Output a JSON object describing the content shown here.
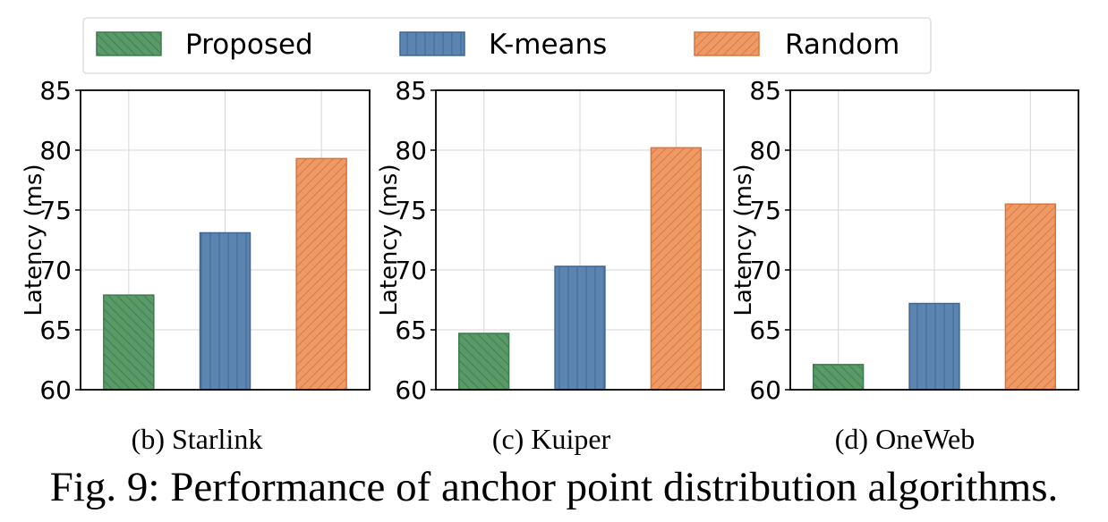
{
  "legend": [
    {
      "label": "Proposed",
      "color": "#5a9a68",
      "edge": "#3d7a4c",
      "hatch": "backslash"
    },
    {
      "label": "K-means",
      "color": "#5b84b1",
      "edge": "#3f6791",
      "hatch": "vertical"
    },
    {
      "label": "Random",
      "color": "#ee9a64",
      "edge": "#d9743e",
      "hatch": "slash"
    }
  ],
  "chart_data": [
    {
      "type": "bar",
      "subcaption": "(b) Starlink",
      "categories": [
        "Proposed",
        "K-means",
        "Random"
      ],
      "values": [
        67.9,
        73.1,
        79.3
      ],
      "ylabel": "Latency (ms)",
      "ylim": [
        60,
        85
      ],
      "yticks": [
        "60",
        "65",
        "70",
        "75",
        "80",
        "85"
      ],
      "grid": true
    },
    {
      "type": "bar",
      "subcaption": "(c) Kuiper",
      "categories": [
        "Proposed",
        "K-means",
        "Random"
      ],
      "values": [
        64.7,
        70.3,
        80.2
      ],
      "ylabel": "Latency (ms)",
      "ylim": [
        60,
        85
      ],
      "yticks": [
        "60",
        "65",
        "70",
        "75",
        "80",
        "85"
      ],
      "grid": true
    },
    {
      "type": "bar",
      "subcaption": "(d) OneWeb",
      "categories": [
        "Proposed",
        "K-means",
        "Random"
      ],
      "values": [
        62.1,
        67.2,
        75.5
      ],
      "ylabel": "Latency (ms)",
      "ylim": [
        60,
        85
      ],
      "yticks": [
        "60",
        "65",
        "70",
        "75",
        "80",
        "85"
      ],
      "grid": true
    }
  ],
  "caption": "Fig. 9: Performance of anchor point distribution algorithms."
}
